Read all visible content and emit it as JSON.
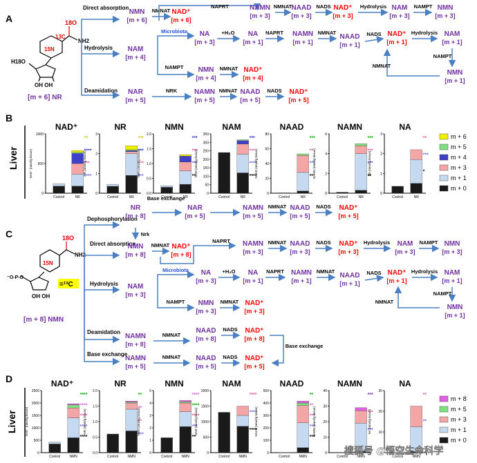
{
  "panels": {
    "A": "A",
    "B": "B",
    "C": "C",
    "D": "D"
  },
  "tissue": "Liver",
  "colors": {
    "arrow": "#4a7fc1",
    "metabolite": "#7030a0",
    "nad": "#ff0000",
    "microbiota": "#1f4fd8",
    "m0": "#1a1a1a",
    "m1": "#c5d9f1",
    "m3": "#f4a6a6",
    "m4": "#4040c8",
    "m5": "#80e080",
    "m6": "#f0f000",
    "m8": "#e060e0",
    "label13c_bg": "#ffff00"
  },
  "panelA": {
    "tracer": "[m + 6] NR",
    "iso_o": "18O",
    "iso_c": "13C",
    "iso_n": "15N",
    "nh2": "NH2",
    "h18o": "H18O",
    "ohoh": "OH  OH",
    "routes": {
      "direct": "Direct absorption",
      "hydrolysis": "Hydrolysis",
      "deamidation": "Deamidation"
    },
    "direct": {
      "nmn": "NMN",
      "nmn_m": "[m + 6]",
      "nmnat": "NMNAT",
      "nad": "NAD⁺",
      "nad_m": "[m + 6]",
      "naprt": "NAPRT",
      "namn": "NAMN",
      "namn_m": "[m + 3]",
      "nmnat2": "NMNAT",
      "naad": "NAAD",
      "naad_m": "[m + 3]",
      "nads": "NADS",
      "nad2": "NAD⁺",
      "nad2_m": "[m + 3]",
      "hydrolysis": "Hydrolysis",
      "nam": "NAM",
      "nam_m": "[m + 3]",
      "nampt": "NAMPT",
      "nmn2": "NMN",
      "nmn2_m": "[m + 3]"
    },
    "hyd": {
      "nam": "NAM",
      "nam_m": "[m + 4]",
      "microbiota": "Microbiota",
      "na": "NA",
      "na_m": "[m + 3]",
      "h2o": "+H₂O",
      "na2": "NA",
      "na2_m": "[m + 1]",
      "naprt": "NAPRT",
      "namn": "NAMN",
      "namn_m": "[m + 1]",
      "nmnat": "NMNAT",
      "naad": "NAAD",
      "naad_m": "[m + 1]",
      "nads": "NADS",
      "nad": "NAD⁺",
      "nad_m": "[m + 1]",
      "hydrolysis": "Hydrolysis",
      "nam2": "NAM",
      "nam2_m": "[m + 1]",
      "nampt2": "NAMPT",
      "nmnat_back": "NMNAT",
      "nmn3": "NMN",
      "nmn3_m": "[m + 1]",
      "nampt": "NAMPT",
      "nmn": "NMN",
      "nmn_m": "[m + 4]",
      "nmnat2": "NMNAT",
      "nad2": "NAD⁺",
      "nad2_m": "[m + 4]"
    },
    "deam": {
      "nar": "NAR",
      "nar_m": "[m + 5]",
      "nrk": "NRK",
      "namn": "NAMN",
      "namn_m": "[m + 5]",
      "nmnat": "NMNAT",
      "naad": "NAAD",
      "naad_m": "[m + 5]",
      "nads": "NADS",
      "nad": "NAD⁺",
      "nad_m": "[m + 5]"
    }
  },
  "panelB_charts": [
    {
      "title": "NAD⁺",
      "ylabel": "NAD⁺ (nmol/g tissue)",
      "ymax": 1000,
      "ticks": [
        "0",
        "500",
        "1000"
      ],
      "cats": [
        "Control",
        "NR"
      ],
      "stacks": [
        [
          [
            "m0",
            120
          ],
          [
            "m1",
            40
          ]
        ],
        [
          [
            "m0",
            120
          ],
          [
            "m1",
            200
          ],
          [
            "m3",
            180
          ],
          [
            "m4",
            170
          ],
          [
            "m5",
            20
          ],
          [
            "m6",
            30
          ]
        ]
      ],
      "stars": [
        [
          "**",
          "#d4c400"
        ],
        [
          "****",
          "#3030c0"
        ],
        [
          "***",
          "#e060a0"
        ],
        [
          "****",
          "#7070e0"
        ]
      ]
    },
    {
      "title": "NR",
      "ylabel": "NR (nmol/g tissue)",
      "ymax": 3,
      "ticks": [
        "0",
        "1",
        "2",
        "3"
      ],
      "cats": [
        "Control",
        "NR"
      ],
      "stacks": [
        [
          [
            "m0",
            0.35
          ],
          [
            "m1",
            0.1
          ]
        ],
        [
          [
            "m0",
            0.9
          ],
          [
            "m1",
            1.1
          ],
          [
            "m3",
            0.1
          ],
          [
            "m4",
            0.05
          ],
          [
            "m5",
            0.05
          ],
          [
            "m6",
            0.2
          ]
        ]
      ],
      "stars": [
        [
          "***",
          "#d4c400"
        ],
        [
          "***",
          "#3030c0"
        ],
        [
          "***",
          "#e060a0"
        ],
        [
          "***",
          "#7070e0"
        ]
      ]
    },
    {
      "title": "NMN",
      "ylabel": "NMN (nmol/g tissue)",
      "ymax": 2,
      "ticks": [
        "0.0",
        "0.5",
        "1.0",
        "1.5",
        "2.0"
      ],
      "cats": [
        "Control",
        "NR"
      ],
      "stacks": [
        [
          [
            "m0",
            0.2
          ],
          [
            "m1",
            0.05
          ]
        ],
        [
          [
            "m0",
            0.3
          ],
          [
            "m1",
            0.45
          ],
          [
            "m3",
            0.3
          ],
          [
            "m4",
            0.2
          ],
          [
            "m6",
            0.05
          ]
        ]
      ],
      "stars": [
        [
          "***",
          "#3030c0"
        ],
        [
          "***",
          "#e060a0"
        ],
        [
          "***",
          "#7070e0"
        ],
        [
          "**",
          "#000000"
        ]
      ]
    },
    {
      "title": "NAM",
      "ylabel": "NAM (nmol/g tissue)",
      "ymax": 350,
      "ticks": [
        "0",
        "50",
        "100",
        "150",
        "200",
        "250",
        "300",
        "350"
      ],
      "cats": [
        "Control",
        "NR"
      ],
      "stacks": [
        [
          [
            "m0",
            240
          ]
        ],
        [
          [
            "m0",
            120
          ],
          [
            "m1",
            110
          ],
          [
            "m3",
            60
          ],
          [
            "m4",
            20
          ],
          [
            "m5",
            5
          ]
        ]
      ],
      "stars": [
        [
          "***",
          "#3030c0"
        ],
        [
          "***",
          "#e060a0"
        ],
        [
          "****",
          "#7070e0"
        ],
        [
          "****",
          "#000000"
        ]
      ]
    },
    {
      "title": "NAAD",
      "ylabel": "NAAD (nmol/g tissue)",
      "ymax": 80,
      "ticks": [
        "0",
        "20",
        "40",
        "60",
        "80"
      ],
      "cats": [
        "Control",
        "NR"
      ],
      "stacks": [
        [
          [
            "m0",
            0.5
          ]
        ],
        [
          [
            "m0",
            3
          ],
          [
            "m1",
            25
          ],
          [
            "m3",
            23
          ],
          [
            "m5",
            2
          ]
        ]
      ],
      "stars": [
        [
          "***",
          "#00b000"
        ],
        [
          "**",
          "#e060a0"
        ],
        [
          "***",
          "#7070e0"
        ],
        [
          "**",
          "#000000"
        ]
      ]
    },
    {
      "title": "NAMN",
      "ylabel": "NAMN (nmol/g tissue)",
      "ymax": 6,
      "ticks": [
        "0",
        "2",
        "4",
        "6"
      ],
      "cats": [
        "Control",
        "NR"
      ],
      "stacks": [
        [
          [
            "m0",
            0.1
          ]
        ],
        [
          [
            "m0",
            0.3
          ],
          [
            "m1",
            3.7
          ],
          [
            "m3",
            0.8
          ],
          [
            "m5",
            0.2
          ]
        ]
      ],
      "stars": [
        [
          "***",
          "#00b000"
        ],
        [
          "***",
          "#e060a0"
        ],
        [
          "***",
          "#7070e0"
        ],
        [
          "**",
          "#000000"
        ]
      ]
    },
    {
      "title": "NA",
      "ylabel": "NA (nmol/g tissue)",
      "ymax": 3,
      "ticks": [
        "0",
        "1",
        "2",
        "3"
      ],
      "cats": [
        "Control",
        "NR"
      ],
      "stacks": [
        [
          [
            "m0",
            0.35
          ]
        ],
        [
          [
            "m0",
            0.5
          ],
          [
            "m1",
            1.2
          ],
          [
            "m3",
            0.5
          ]
        ]
      ],
      "stars": [
        [
          "**",
          "#e060a0"
        ],
        [
          "***",
          "#7070e0"
        ],
        [
          "*",
          "#000000"
        ]
      ]
    }
  ],
  "panelB_legend": [
    [
      "m6",
      "m + 6"
    ],
    [
      "m5",
      "m + 5"
    ],
    [
      "m4",
      "m + 4"
    ],
    [
      "m3",
      "m + 3"
    ],
    [
      "m1",
      "m + 1"
    ],
    [
      "m0",
      "m + 0"
    ]
  ],
  "panelC": {
    "tracer": "[m + 8] NMN",
    "c13": "=¹³C",
    "iso_o": "18O",
    "iso_n": "15N",
    "nh2": "NH2",
    "ohoh": "OH  OH",
    "p_o": "O",
    "routes": {
      "dephos": "Dephosphorylation",
      "direct": "Direct absorption",
      "hydrolysis": "Hydrolysis",
      "deam": "Deamidation",
      "baseex": "Base exchange",
      "baseex2": "Base exchange",
      "baseex3": "Base exchange"
    },
    "dephos": {
      "nr": "NR",
      "nr_m": "[m + 8]",
      "nrk": "Nrk",
      "nar": "NAR",
      "nar_m": "[m + 5]",
      "namn": "NAMN",
      "namn_m": "[m + 5]",
      "nmnat": "NMNAT",
      "naad": "NAAD",
      "naad_m": "[m + 5]",
      "nads": "NADS",
      "nad": "NAD⁺",
      "nad_m": "[m + 5]"
    },
    "direct": {
      "nmn": "NMN",
      "nmn_m": "[m + 8]",
      "nmnat": "NMNAT",
      "nad": "NAD⁺",
      "nad_m": "[m + 8]",
      "naprt": "NAPRT",
      "namn": "NAMN",
      "namn_m": "[m + 3]",
      "nmnat2": "NMNAT",
      "naad": "NAAD",
      "naad_m": "[m + 3]",
      "nads": "NADS",
      "nad2": "NAD⁺",
      "nad2_m": "[m + 3]",
      "hydrolysis": "Hydrolysis",
      "nam": "NAM",
      "nam_m": "[m + 3]",
      "nampt": "NAMPT",
      "nmn2": "NMN",
      "nmn2_m": "[m + 3]"
    },
    "hyd": {
      "nam": "NAM",
      "nam_m": "[m + 3]",
      "microbiota": "Microbiota",
      "na": "NA",
      "na_m": "[m + 3]",
      "h2o": "+H₂O",
      "na2": "NA",
      "na2_m": "[m + 1]",
      "naprt": "NAPRT",
      "namn": "NAMN",
      "namn_m": "[m + 1]",
      "nmnat": "NMNAT",
      "naad": "NAAD",
      "naad_m": "[m + 1]",
      "nads": "NADS",
      "nad": "NAD⁺",
      "nad_m": "[m + 1]",
      "hydrolysis": "Hydrolysis",
      "nam2": "NAM",
      "nam2_m": "[m + 1]",
      "nampt2": "NAMPT",
      "nmnat_back": "NMNAT",
      "nmn3": "NMN",
      "nmn3_m": "[m + 1]",
      "nampt": "NAMPT",
      "nmn": "NMN",
      "nmn_m": "[m + 3]",
      "nmnat2": "NMNAT",
      "nad2": "NAD⁺",
      "nad2_m": "[m + 3]"
    },
    "deam": {
      "namn": "NAMN",
      "namn_m": "[m + 8]",
      "nmnat": "NMNAT",
      "naad": "NAAD",
      "naad_m": "[m + 8]",
      "nads": "NADS",
      "nad": "NAD⁺",
      "nad_m": "[m + 8]"
    },
    "baseex": {
      "namn": "NAMN",
      "namn_m": "[m + 5]",
      "nmnat": "NMNAT",
      "naad": "NAAD",
      "naad_m": "[m + 5]",
      "nads": "NADS",
      "nad": "NAD⁺",
      "nad_m": "[m + 5]"
    }
  },
  "panelD_charts": [
    {
      "title": "NAD⁺",
      "ylabel": "NAD⁺ (nmol/g tissue)",
      "ymax": 2500,
      "ticks": [
        "0",
        "500",
        "1000",
        "1500",
        "2000",
        "2500"
      ],
      "cats": [
        "Control",
        "NMN"
      ],
      "stacks": [
        [
          [
            "m0",
            350
          ],
          [
            "m1",
            80
          ]
        ],
        [
          [
            "m0",
            600
          ],
          [
            "m1",
            800
          ],
          [
            "m3",
            400
          ],
          [
            "m5",
            120
          ],
          [
            "m8",
            50
          ]
        ]
      ],
      "stars": [
        [
          "****",
          "#00b000"
        ],
        [
          "****",
          "#e060e0"
        ],
        [
          "****",
          "#e060a0"
        ],
        [
          "****",
          "#7070e0"
        ],
        [
          "****",
          "#000000"
        ]
      ]
    },
    {
      "title": "NR",
      "ylabel": "NR (nmol/g tissue)",
      "ymax": 2,
      "ticks": [
        "0.0",
        "0.5",
        "1.0",
        "1.5",
        "2.0"
      ],
      "cats": [
        "Control",
        "NMN"
      ],
      "stacks": [
        [
          [
            "m0",
            0.6
          ]
        ],
        [
          [
            "m0",
            0.7
          ],
          [
            "m1",
            0.7
          ],
          [
            "m3",
            0.2
          ],
          [
            "m5",
            0.03
          ],
          [
            "m8",
            0.03
          ]
        ]
      ],
      "stars": [
        [
          "**",
          "#00b000"
        ],
        [
          "**",
          "#e060e0"
        ],
        [
          "**",
          "#e060a0"
        ],
        [
          "***",
          "#7070e0"
        ]
      ]
    },
    {
      "title": "NMN",
      "ylabel": "NMN (nmol/g tissue)",
      "ymax": 5,
      "ticks": [
        "0",
        "1",
        "2",
        "3",
        "4",
        "5"
      ],
      "cats": [
        "Control",
        "NMN"
      ],
      "stacks": [
        [
          [
            "m0",
            1.2
          ]
        ],
        [
          [
            "m0",
            2.1
          ],
          [
            "m1",
            1.2
          ],
          [
            "m3",
            0.7
          ],
          [
            "m5",
            0.1
          ],
          [
            "m8",
            0.1
          ]
        ]
      ],
      "stars": [
        [
          "****",
          "#e060e0"
        ],
        [
          "****",
          "#00b000"
        ],
        [
          "****",
          "#e060a0"
        ],
        [
          "***",
          "#7070e0"
        ],
        [
          "**",
          "#000000"
        ]
      ]
    },
    {
      "title": "NAM",
      "ylabel": "NAM (nmol/g tissue)",
      "ymax": 2000,
      "ticks": [
        "0",
        "500",
        "1000",
        "1500",
        "2000"
      ],
      "cats": [
        "Control",
        "NMN"
      ],
      "stacks": [
        [
          [
            "m0",
            1300
          ]
        ],
        [
          [
            "m0",
            850
          ],
          [
            "m1",
            350
          ],
          [
            "m3",
            300
          ]
        ]
      ],
      "stars": [
        [
          "****",
          "#e060a0"
        ],
        [
          "****",
          "#7070e0"
        ],
        [
          "****",
          "#000000"
        ]
      ]
    },
    {
      "title": "NAAD",
      "ylabel": "NAAD (nmol/g tissue)",
      "ymax": 500,
      "ticks": [
        "0",
        "100",
        "200",
        "300",
        "400",
        "500"
      ],
      "cats": [
        "Control",
        "NMN"
      ],
      "stacks": [
        [
          [
            "m0",
            2
          ]
        ],
        [
          [
            "m0",
            40
          ],
          [
            "m1",
            200
          ],
          [
            "m3",
            140
          ],
          [
            "m5",
            20
          ],
          [
            "m8",
            15
          ]
        ]
      ],
      "stars": [
        [
          "**",
          "#00b000"
        ],
        [
          "**",
          "#e060e0"
        ],
        [
          "***",
          "#e060a0"
        ],
        [
          "***",
          "#7070e0"
        ],
        [
          "***",
          "#000000"
        ]
      ]
    },
    {
      "title": "NAMN",
      "ylabel": "NAMN (nmol/g tissue)",
      "ymax": 40,
      "ticks": [
        "0",
        "10",
        "20",
        "30",
        "40"
      ],
      "cats": [
        "Control",
        "NMN"
      ],
      "stacks": [
        [
          [
            "m0",
            0.2
          ]
        ],
        [
          [
            "m0",
            1
          ],
          [
            "m1",
            18
          ],
          [
            "m3",
            8
          ],
          [
            "m8",
            2
          ]
        ]
      ],
      "stars": [
        [
          "***",
          "#7030a0"
        ],
        [
          "***",
          "#e060a0"
        ],
        [
          "***",
          "#7070e0"
        ]
      ]
    },
    {
      "title": "NA",
      "ylabel": "NA (nmol/g tissue)",
      "ymax": 30,
      "ticks": [
        "0",
        "10",
        "20",
        "30"
      ],
      "cats": [
        "Control",
        "NMN"
      ],
      "stacks": [
        [
          [
            "m0",
            0.1
          ]
        ],
        [
          [
            "m0",
            0.5
          ],
          [
            "m1",
            12
          ],
          [
            "m3",
            10
          ]
        ]
      ],
      "stars": [
        [
          "**",
          "#e060a0"
        ],
        [
          "**",
          "#7070e0"
        ]
      ]
    }
  ],
  "panelD_legend": [
    [
      "m8",
      "m + 8"
    ],
    [
      "m5",
      "m + 5"
    ],
    [
      "m3",
      "m + 3"
    ],
    [
      "m1",
      "m + 1"
    ],
    [
      "m0",
      "m + 0"
    ]
  ],
  "watermark": "搜狐号 @悟空生命科学"
}
